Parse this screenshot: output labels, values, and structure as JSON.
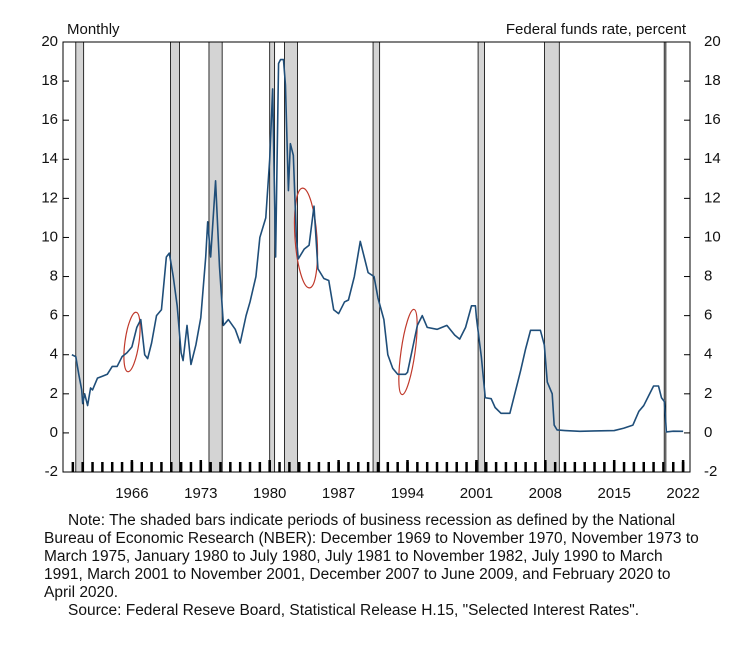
{
  "chart_data": {
    "type": "line",
    "left_label": "Monthly",
    "right_label": "Federal funds rate, percent",
    "xlim": [
      1959.0,
      2022.7
    ],
    "ylim": [
      -2,
      20
    ],
    "y2lim": [
      -2,
      20
    ],
    "xticks": [
      1966,
      1973,
      1980,
      1987,
      1994,
      2001,
      2008,
      2015,
      2022
    ],
    "xminorticks": [
      1960,
      1961,
      1962,
      1963,
      1964,
      1965,
      1966,
      1967,
      1968,
      1969,
      1970,
      1971,
      1972,
      1973,
      1974,
      1975,
      1976,
      1977,
      1978,
      1979,
      1980,
      1981,
      1982,
      1983,
      1984,
      1985,
      1986,
      1987,
      1988,
      1989,
      1990,
      1991,
      1992,
      1993,
      1994,
      1995,
      1996,
      1997,
      1998,
      1999,
      2000,
      2001,
      2002,
      2003,
      2004,
      2005,
      2006,
      2007,
      2008,
      2009,
      2010,
      2011,
      2012,
      2013,
      2014,
      2015,
      2016,
      2017,
      2018,
      2019,
      2020,
      2021,
      2022
    ],
    "yticks": [
      -2,
      0,
      2,
      4,
      6,
      8,
      10,
      12,
      14,
      16,
      18,
      20
    ],
    "y2ticks": [
      -2,
      0,
      2,
      4,
      6,
      8,
      10,
      12,
      14,
      16,
      18,
      20
    ],
    "recession_color": "#d4d4d4",
    "recessions": [
      [
        1960.3,
        1961.1
      ],
      [
        1969.92,
        1970.83
      ],
      [
        1973.83,
        1975.17
      ],
      [
        1980.0,
        1980.5
      ],
      [
        1981.5,
        1982.83
      ],
      [
        1990.5,
        1991.17
      ],
      [
        2001.17,
        2001.83
      ],
      [
        2007.92,
        2009.42
      ],
      [
        2020.08,
        2020.25
      ]
    ],
    "series": [
      {
        "color": "#1f4e79",
        "x": [
          1959.9,
          1960.3,
          1960.6,
          1960.9,
          1961.0,
          1961.2,
          1961.5,
          1961.8,
          1962.0,
          1962.5,
          1963.0,
          1963.5,
          1964.0,
          1964.5,
          1965.0,
          1965.5,
          1966.0,
          1966.5,
          1966.9,
          1967.3,
          1967.6,
          1968.0,
          1968.5,
          1969.0,
          1969.5,
          1969.8,
          1970.2,
          1970.6,
          1971.0,
          1971.2,
          1971.6,
          1972.0,
          1972.5,
          1973.0,
          1973.5,
          1973.7,
          1974.0,
          1974.5,
          1974.9,
          1975.3,
          1975.8,
          1976.5,
          1977.0,
          1977.6,
          1978.0,
          1978.6,
          1979.0,
          1979.6,
          1980.0,
          1980.3,
          1980.6,
          1980.9,
          1981.1,
          1981.4,
          1981.6,
          1981.9,
          1982.1,
          1982.4,
          1982.7,
          1982.9,
          1983.5,
          1984.0,
          1984.5,
          1984.9,
          1985.5,
          1986.0,
          1986.5,
          1987.0,
          1987.6,
          1988.0,
          1988.6,
          1989.2,
          1989.6,
          1990.0,
          1990.6,
          1991.0,
          1991.6,
          1992.0,
          1992.5,
          1993.0,
          1993.8,
          1994.0,
          1994.5,
          1995.0,
          1995.5,
          1996.0,
          1997.0,
          1998.0,
          1998.8,
          1999.3,
          1999.9,
          2000.5,
          2000.9,
          2001.0,
          2001.5,
          2001.9,
          2002.5,
          2002.9,
          2003.5,
          2004.4,
          2004.9,
          2005.5,
          2006.0,
          2006.5,
          2007.5,
          2007.9,
          2008.2,
          2008.7,
          2008.9,
          2009.2,
          2010.0,
          2011.5,
          2013.0,
          2015.0,
          2015.95,
          2016.9,
          2017.5,
          2018.0,
          2018.5,
          2019.0,
          2019.5,
          2019.8,
          2020.1,
          2020.3,
          2021.0,
          2022.0
        ],
        "y": [
          4.0,
          3.9,
          3.0,
          2.2,
          1.5,
          2.0,
          1.4,
          2.3,
          2.2,
          2.8,
          2.9,
          3.0,
          3.4,
          3.4,
          3.9,
          4.1,
          4.4,
          5.4,
          5.8,
          4.0,
          3.8,
          4.6,
          6.0,
          6.3,
          9.0,
          9.2,
          8.0,
          6.5,
          4.1,
          3.7,
          5.5,
          3.5,
          4.5,
          5.9,
          9.0,
          10.8,
          9.0,
          12.9,
          8.5,
          5.5,
          5.8,
          5.3,
          4.6,
          6.0,
          6.7,
          8.0,
          10.0,
          11.0,
          14.0,
          17.6,
          9.0,
          18.9,
          19.1,
          19.1,
          17.8,
          12.4,
          14.8,
          14.2,
          10.1,
          8.9,
          9.4,
          9.6,
          11.6,
          8.4,
          7.9,
          7.8,
          6.3,
          6.1,
          6.7,
          6.8,
          8.0,
          9.8,
          9.0,
          8.2,
          8.0,
          6.9,
          5.8,
          4.0,
          3.3,
          3.0,
          3.0,
          3.1,
          4.3,
          5.5,
          6.0,
          5.4,
          5.3,
          5.5,
          5.0,
          4.8,
          5.4,
          6.5,
          6.5,
          5.9,
          3.9,
          1.8,
          1.75,
          1.3,
          1.0,
          1.0,
          2.0,
          3.2,
          4.3,
          5.25,
          5.25,
          4.5,
          2.6,
          2.0,
          0.4,
          0.15,
          0.12,
          0.08,
          0.1,
          0.12,
          0.24,
          0.4,
          1.1,
          1.4,
          1.9,
          2.4,
          2.4,
          1.8,
          1.6,
          0.05,
          0.09,
          0.08
        ]
      }
    ],
    "note": "Note: The shaded bars indicate periods of business recession as defined by the National Bureau of Economic Research (NBER): December 1969 to November 1970, November 1973 to March 1975, January 1980 to July 1980, July 1981 to November 1982, July 1990 to March 1991, March 2001 to November 2001, December 2007 to June 2009, and February 2020 to April 2020.",
    "source": "Source: Federal Reseve Board, Statistical Release H.15, \"Selected Interest Rates\"."
  }
}
